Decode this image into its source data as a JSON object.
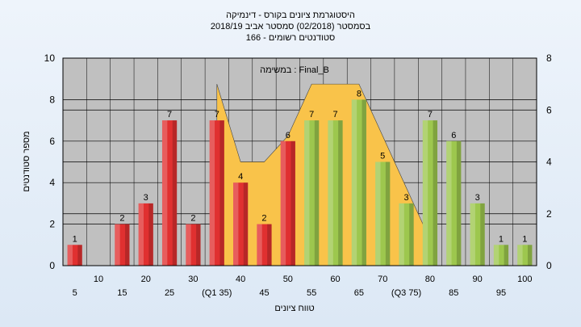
{
  "chart_data": {
    "type": "bar",
    "title_lines": [
      "היסטוגרמת ציונים בקורס - דינמיקה",
      "בסמסטר  (02/2018)  סמסטר אביב 2018/19",
      "סטודנטים רשומים - 166"
    ],
    "annotation": "במשימה : Final_B",
    "xlabel": "טווח ציונים",
    "ylabel": "מספר סטודנטים",
    "ylim": [
      0,
      10
    ],
    "y_ticks": [
      0,
      2,
      4,
      6,
      8,
      10
    ],
    "y2lim": [
      0,
      8
    ],
    "y2_ticks": [
      0,
      2,
      4,
      6,
      8
    ],
    "grid": true,
    "categories": [
      "5",
      "10",
      "15",
      "20",
      "25",
      "30",
      "35",
      "40",
      "45",
      "50",
      "55",
      "60",
      "65",
      "70",
      "75",
      "80",
      "85",
      "90",
      "95",
      "100"
    ],
    "x_tick_labels": [
      "5",
      "10",
      "15",
      "20",
      "25",
      "30",
      "(Q1 35)",
      "40",
      "45",
      "50",
      "55",
      "60",
      "65",
      "70",
      "(Q3 75)",
      "80",
      "85",
      "90",
      "95",
      "100"
    ],
    "series": [
      {
        "values": [
          1,
          0,
          2,
          3,
          7,
          2,
          7,
          4,
          2,
          6,
          7,
          7,
          8,
          5,
          3,
          7,
          6,
          3,
          1,
          1
        ],
        "colors": [
          "#e03030",
          "#e03030",
          "#e03030",
          "#e03030",
          "#e03030",
          "#e03030",
          "#e03030",
          "#e03030",
          "#e03030",
          "#e03030",
          "#9dc74e",
          "#9dc74e",
          "#9dc74e",
          "#9dc74e",
          "#9dc74e",
          "#9dc74e",
          "#9dc74e",
          "#9dc74e",
          "#9dc74e",
          "#9dc74e"
        ]
      }
    ],
    "area": {
      "color": "#f9c34a",
      "points": [
        {
          "x": "35",
          "y": 7
        },
        {
          "x": "40",
          "y": 4
        },
        {
          "x": "45",
          "y": 4
        },
        {
          "x": "50",
          "y": 5
        },
        {
          "x": "55",
          "y": 7
        },
        {
          "x": "60",
          "y": 7
        },
        {
          "x": "65",
          "y": 7
        },
        {
          "x": "70",
          "y": 5
        },
        {
          "x": "75",
          "y": 3
        },
        {
          "x": "80",
          "y": 1
        }
      ]
    },
    "colors": {
      "red": "#e03030",
      "green": "#9dc74e",
      "area": "#f9c34a",
      "plot_bg": "#c0c0c0"
    }
  }
}
